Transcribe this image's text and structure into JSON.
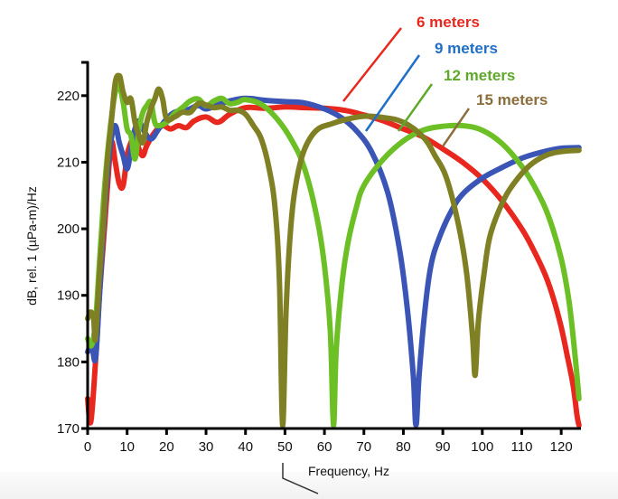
{
  "chart_data": {
    "type": "line",
    "title": "",
    "xlabel": "Frequency, Hz",
    "ylabel": "dB, rel. 1 (µPa-m)/Hz",
    "xlim": [
      0,
      125
    ],
    "ylim": [
      170,
      225
    ],
    "grid": false,
    "legend_placement": "top-right (callout labels with leader lines)",
    "xticks": [
      0,
      10,
      20,
      30,
      40,
      50,
      60,
      70,
      80,
      90,
      100,
      110,
      120
    ],
    "xtick_labels": [
      "0",
      "10",
      "20",
      "30",
      "40",
      "50",
      "60",
      "70",
      "80",
      "90",
      "100",
      "110",
      "120"
    ],
    "yticks": [
      170,
      180,
      190,
      200,
      210,
      220
    ],
    "ytick_labels": [
      "170",
      "180",
      "190",
      "200",
      "210",
      "220"
    ],
    "series": [
      {
        "name": "6 meters",
        "color": "#e8281e",
        "label_color": "#e8281e",
        "x": [
          0,
          0.8,
          2,
          3,
          4,
          5,
          6,
          7,
          8,
          9,
          10,
          11,
          12,
          13,
          14,
          15,
          17,
          19,
          21,
          23,
          25,
          27,
          30,
          33,
          36,
          40,
          45,
          50,
          55,
          60,
          65,
          70,
          75,
          80,
          85,
          90,
          95,
          100,
          105,
          110,
          113,
          116,
          118,
          120,
          121.5,
          123,
          124,
          124.5
        ],
        "values": [
          174.5,
          171,
          180,
          190,
          198,
          206,
          213,
          210,
          206.8,
          206.5,
          211,
          213,
          214,
          212,
          211,
          212.5,
          214.5,
          215.5,
          215,
          215.5,
          215.2,
          216.2,
          216.8,
          216,
          217.2,
          218.2,
          218.1,
          218.3,
          218.2,
          218.1,
          217.8,
          217.1,
          216.2,
          215,
          213.8,
          212,
          210,
          207.5,
          204.2,
          200,
          196.8,
          193,
          189.6,
          185.2,
          181,
          176.5,
          172,
          170.5
        ]
      },
      {
        "name": "9 meters",
        "color": "#3a55b5",
        "label_color": "#1f6fc8",
        "x": [
          0,
          1,
          2,
          3,
          4,
          5,
          6,
          7,
          8,
          9,
          10,
          11,
          12,
          13,
          14,
          16,
          18,
          20,
          22,
          25,
          28,
          30,
          33,
          36,
          40,
          45,
          50,
          55,
          60,
          64,
          68,
          72,
          76,
          79,
          81,
          82.5,
          83.2,
          84,
          85.5,
          87,
          89,
          92,
          95,
          100,
          105,
          110,
          115,
          120,
          124.5
        ],
        "values": [
          181.5,
          182.5,
          180.5,
          190,
          200,
          208,
          213.5,
          215.5,
          213,
          211,
          209,
          212,
          215,
          216.2,
          215,
          213.5,
          215,
          216.5,
          217.5,
          217.8,
          218.5,
          218,
          218.6,
          219.2,
          219.6,
          219.3,
          219.1,
          218.9,
          218,
          216.8,
          214.8,
          211.5,
          205.5,
          197,
          188,
          178,
          170.5,
          178,
          188,
          194.5,
          198.5,
          202.5,
          205.2,
          207.6,
          209.2,
          210.6,
          211.5,
          212.1,
          212.2
        ]
      },
      {
        "name": "12 meters",
        "color": "#6cbf25",
        "label_color": "#5ea92a",
        "x": [
          0,
          1,
          2,
          3,
          4,
          5,
          6,
          7,
          8,
          9,
          10,
          11,
          12,
          13,
          14,
          15,
          16,
          17,
          18,
          20,
          22,
          24,
          26,
          28,
          30,
          32,
          34,
          36,
          38,
          40,
          44,
          48,
          52,
          55,
          58,
          60,
          61.5,
          62.3,
          63,
          64.5,
          66,
          68,
          70,
          75,
          80,
          85,
          90,
          95,
          100,
          105,
          110,
          114,
          117,
          120,
          122,
          123.5,
          124.5
        ],
        "values": [
          183.5,
          182.5,
          186,
          195,
          204,
          211,
          216.5,
          220.5,
          221.5,
          219,
          215,
          214,
          210.5,
          215,
          217.5,
          218.5,
          219,
          216,
          215.5,
          216,
          217.3,
          218.2,
          219.2,
          219.5,
          218.5,
          219.2,
          219.6,
          218.8,
          219,
          219.4,
          218.7,
          216.5,
          213,
          209,
          202,
          194.5,
          184.5,
          170.5,
          182,
          192,
          198,
          203,
          206.5,
          210.5,
          213.2,
          214.8,
          215.4,
          215.5,
          214.8,
          212.8,
          209.4,
          205.5,
          201.5,
          195.5,
          189,
          181,
          174.5
        ]
      },
      {
        "name": "15 meters",
        "color": "#7f7f23",
        "label_color": "#8c6d3c",
        "x": [
          0,
          0.8,
          1.5,
          2,
          3,
          4,
          5,
          6,
          7,
          8,
          8.5,
          9,
          10,
          11,
          12,
          13,
          14,
          15,
          16,
          17,
          18,
          19,
          20,
          22,
          24,
          26,
          28,
          30,
          32,
          34,
          36,
          38,
          40,
          42,
          44,
          46,
          47.5,
          48.6,
          49.4,
          50.3,
          51.5,
          53,
          55,
          58,
          62,
          66,
          70,
          75,
          80,
          85,
          88,
          91,
          94,
          96,
          97.5,
          98.2,
          99,
          100.5,
          102,
          105,
          108,
          112,
          116,
          120,
          124.5
        ],
        "values": [
          186.5,
          187.5,
          186.5,
          183.5,
          193,
          201,
          210,
          216,
          222,
          223,
          222,
          220.5,
          219,
          219.5,
          216,
          214,
          213,
          216,
          218,
          219.5,
          221,
          219.5,
          216.5,
          216.8,
          217.5,
          217.5,
          218.8,
          218.6,
          218.2,
          218.3,
          217.8,
          217.8,
          217.2,
          215.5,
          213.5,
          209,
          203,
          192,
          170.5,
          188,
          200.5,
          207.5,
          212,
          214.8,
          215.8,
          216.5,
          216.9,
          216.7,
          216,
          213.8,
          211,
          207.5,
          200.5,
          193.5,
          184,
          178,
          186,
          193.5,
          199,
          203.8,
          206.8,
          209.5,
          211,
          211.6,
          211.8
        ]
      }
    ],
    "annotations": [
      {
        "text": "6 meters",
        "target": "6 meters"
      },
      {
        "text": "9 meters",
        "target": "9 meters"
      },
      {
        "text": "12 meters",
        "target": "12 meters"
      },
      {
        "text": "15 meters",
        "target": "15 meters"
      }
    ]
  }
}
